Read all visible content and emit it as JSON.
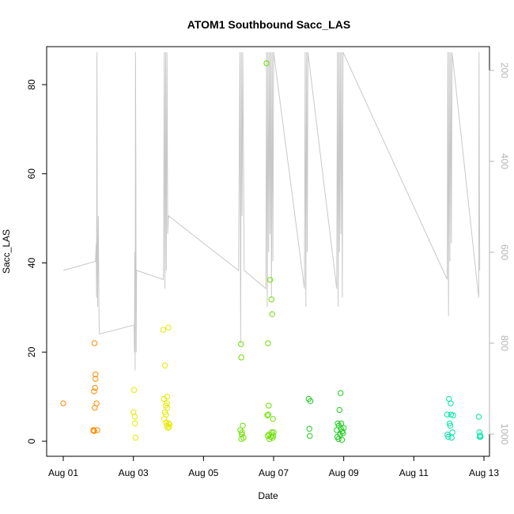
{
  "chart_data": {
    "type": "scatter",
    "title": "ATOM1 Southbound Sacc_LAS",
    "xlabel": "Date",
    "ylabel": "Sacc_LAS",
    "xlim": [
      0,
      14
    ],
    "ylim": [
      0,
      88
    ],
    "y2lim": [
      1040,
      170
    ],
    "x_ticks": [
      {
        "value": 0,
        "label": "Aug 01"
      },
      {
        "value": 2,
        "label": "Aug 03"
      },
      {
        "value": 4,
        "label": "Aug 05"
      },
      {
        "value": 6,
        "label": "Aug 07"
      },
      {
        "value": 8,
        "label": "Aug 09"
      },
      {
        "value": 10,
        "label": "Aug 11"
      },
      {
        "value": 12,
        "label": "Aug 13"
      }
    ],
    "y_ticks": [
      {
        "value": 0,
        "label": "0"
      },
      {
        "value": 20,
        "label": "20"
      },
      {
        "value": 40,
        "label": "40"
      },
      {
        "value": 60,
        "label": "60"
      },
      {
        "value": 80,
        "label": "80"
      }
    ],
    "y2_ticks": [
      {
        "value": 200,
        "label": "200"
      },
      {
        "value": 400,
        "label": "400"
      },
      {
        "value": 600,
        "label": "600"
      },
      {
        "value": 800,
        "label": "800"
      },
      {
        "value": 1000,
        "label": "1000"
      }
    ],
    "colors": {
      "profile_line": "#c8c8c8",
      "axis": "#000000",
      "right_axis": "#b4b4b4"
    },
    "secondary_series": {
      "type": "line",
      "axis": "right",
      "x": [
        0.0,
        0.92,
        0.94,
        0.95,
        0.96,
        0.97,
        0.98,
        1.0,
        1.02,
        1.03,
        2.02,
        2.03,
        2.04,
        2.05,
        2.06,
        2.07,
        2.08,
        2.09,
        2.1,
        2.85,
        2.86,
        2.88,
        2.9,
        2.92,
        2.94,
        2.96,
        2.98,
        3.0,
        5.0,
        5.02,
        5.04,
        5.06,
        5.08,
        5.1,
        5.12,
        5.14,
        5.16,
        5.78,
        5.8,
        5.82,
        5.84,
        5.86,
        5.88,
        5.9,
        5.92,
        5.94,
        5.96,
        5.98,
        6.0,
        6.88,
        6.9,
        6.92,
        6.94,
        6.96,
        6.98,
        7.8,
        7.82,
        7.84,
        7.86,
        7.88,
        7.9,
        7.92,
        7.94,
        7.96,
        7.98,
        10.95,
        10.97,
        10.99,
        11.01,
        11.03,
        11.05,
        11.07,
        11.09,
        11.85,
        11.86,
        11.87,
        11.88
      ],
      "y": [
        640,
        620,
        580,
        700,
        160,
        560,
        720,
        520,
        740,
        780,
        760,
        820,
        600,
        860,
        160,
        400,
        820,
        640,
        640,
        660,
        640,
        160,
        680,
        160,
        640,
        160,
        560,
        520,
        640,
        380,
        160,
        800,
        160,
        520,
        160,
        380,
        640,
        680,
        160,
        720,
        160,
        600,
        160,
        560,
        160,
        700,
        160,
        620,
        160,
        680,
        160,
        720,
        160,
        600,
        160,
        680,
        160,
        720,
        160,
        600,
        160,
        560,
        160,
        700,
        160,
        660,
        160,
        740,
        160,
        620,
        160,
        580,
        160,
        700,
        160,
        440,
        640
      ]
    },
    "series": [
      {
        "color": "#ff8c00",
        "x": [
          0.0,
          0.86,
          0.86,
          0.87,
          0.88,
          0.88,
          0.89,
          0.9,
          0.91,
          0.92,
          0.92,
          0.95,
          0.97
        ],
        "y": [
          8.5,
          2.5,
          2.4,
          2.5,
          2.3,
          11.2,
          22.0,
          7.5,
          12.0,
          14.0,
          15.0,
          8.5,
          2.5
        ]
      },
      {
        "color": "#e8e800",
        "x": [
          2.0,
          2.02,
          2.04,
          2.05,
          2.06,
          2.85,
          2.87,
          2.88,
          2.9,
          2.9,
          2.92,
          2.93,
          2.94,
          2.95,
          2.96,
          2.96,
          2.97,
          2.98,
          3.0,
          3.01,
          3.02,
          3.03
        ],
        "y": [
          6.5,
          11.5,
          5.5,
          4.0,
          0.8,
          25.0,
          9.5,
          5.0,
          6.5,
          17.0,
          8.0,
          6.0,
          4.2,
          3.5,
          8.5,
          10.0,
          7.5,
          3.0,
          25.5,
          4.0,
          3.2,
          3.8
        ]
      },
      {
        "color": "#6be000",
        "x": [
          5.05,
          5.07,
          5.08,
          5.08,
          5.09,
          5.1,
          5.12,
          5.14,
          5.8,
          5.82,
          5.83,
          5.84,
          5.85,
          5.86,
          5.87,
          5.88,
          5.9,
          5.92,
          5.94,
          5.95,
          5.96,
          5.97,
          5.98,
          5.99,
          6.0
        ],
        "y": [
          2.5,
          21.8,
          0.5,
          18.8,
          1.5,
          2.0,
          3.5,
          0.8,
          84.8,
          5.8,
          1.2,
          22.0,
          6.0,
          8.0,
          1.5,
          0.5,
          36.2,
          1.0,
          31.8,
          2.0,
          28.5,
          0.8,
          5.0,
          1.3,
          2.0
        ]
      },
      {
        "color": "#1ecc1e",
        "x": [
          7.0,
          7.02,
          7.03,
          7.05,
          7.8,
          7.82,
          7.83,
          7.85,
          7.86,
          7.88,
          7.9,
          7.91,
          7.92,
          7.93,
          7.95,
          7.96,
          7.98,
          8.0
        ],
        "y": [
          9.5,
          2.8,
          1.2,
          9.0,
          2.5,
          1.0,
          4.0,
          0.5,
          3.5,
          7.0,
          1.5,
          10.8,
          2.8,
          4.0,
          0.3,
          2.2,
          1.8,
          3.0
        ]
      },
      {
        "color": "#00e8a8",
        "x": [
          10.95,
          10.96,
          10.98,
          11.0,
          11.02,
          11.04,
          11.05,
          11.06,
          11.08,
          11.1,
          11.12,
          11.85,
          11.87,
          11.88,
          11.89,
          11.9
        ],
        "y": [
          6.0,
          1.5,
          1.0,
          9.5,
          4.0,
          3.5,
          8.5,
          6.0,
          0.8,
          2.0,
          5.8,
          5.5,
          2.0,
          1.0,
          1.3,
          1.0
        ]
      }
    ]
  }
}
